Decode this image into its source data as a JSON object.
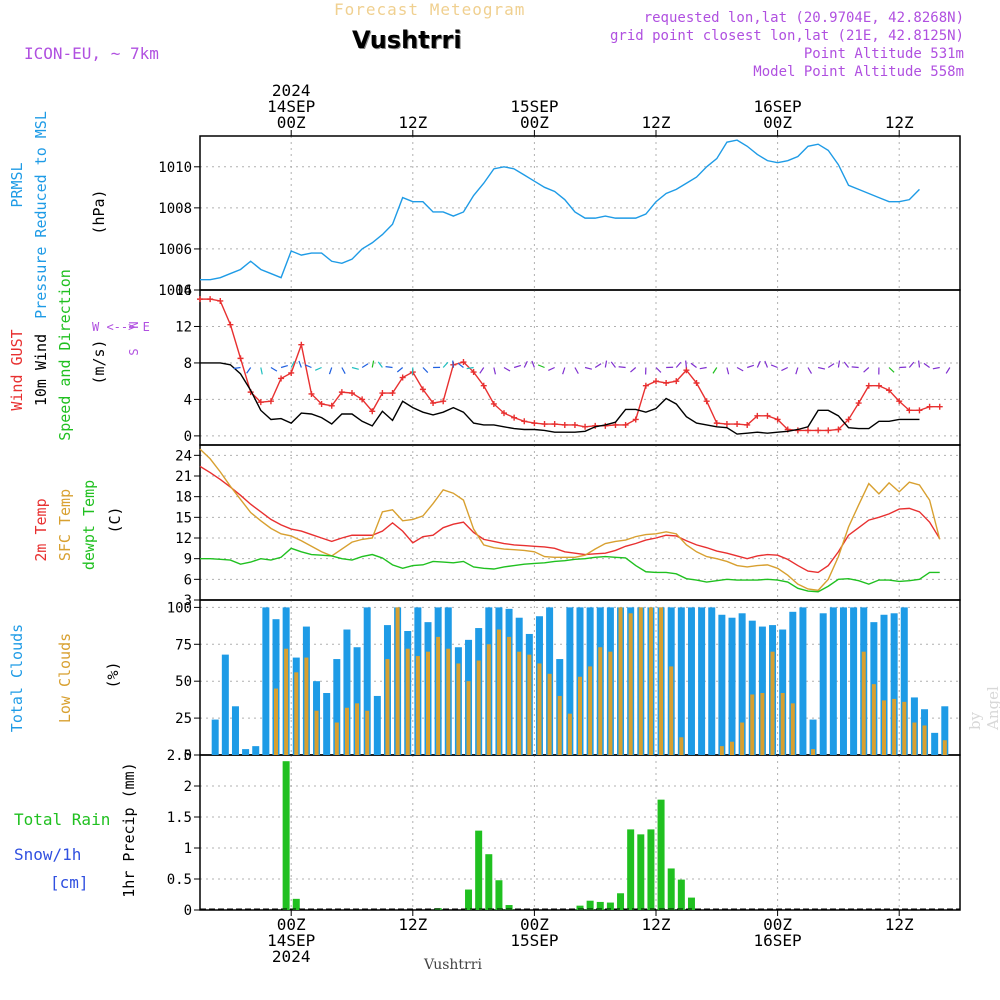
{
  "header": {
    "title": "Forecast Meteogram",
    "station": "Vushtrri",
    "model": "ICON-EU, ~ 7km",
    "requested": "requested lon,lat (20.9704E, 42.8268N)",
    "gridpoint": "grid point closest lon,lat (21E, 42.8125N)",
    "point_alt": "Point Altitude 531m",
    "model_alt": "Model Point Altitude 558m",
    "credit": "by Angel",
    "footer": "Vushtrri"
  },
  "colors": {
    "pressure": "#1e9be6",
    "gust": "#e83030",
    "wind": "#000000",
    "dir": "#20c020",
    "t2m": "#e83030",
    "tsfc": "#d8a030",
    "dew": "#20c020",
    "totcloud": "#1e9be6",
    "lowcloud": "#d8a030",
    "rain": "#20c020",
    "snow": "#3050e0",
    "meta": "#b050e0"
  },
  "chart_data": {
    "type": "meteogram",
    "time_axis": {
      "start_hour": -9,
      "end_hour": 66,
      "top_labels": [
        {
          "hour": 0,
          "lines": [
            "2024",
            "14SEP",
            "00Z"
          ]
        },
        {
          "hour": 12,
          "lines": [
            "12Z"
          ]
        },
        {
          "hour": 24,
          "lines": [
            "15SEP",
            "00Z"
          ]
        },
        {
          "hour": 36,
          "lines": [
            "12Z"
          ]
        },
        {
          "hour": 48,
          "lines": [
            "16SEP",
            "00Z"
          ]
        },
        {
          "hour": 60,
          "lines": [
            "12Z"
          ]
        }
      ],
      "bottom_labels": [
        {
          "hour": 0,
          "lines": [
            "00Z",
            "14SEP",
            "2024"
          ]
        },
        {
          "hour": 12,
          "lines": [
            "12Z"
          ]
        },
        {
          "hour": 24,
          "lines": [
            "00Z",
            "15SEP"
          ]
        },
        {
          "hour": 36,
          "lines": [
            "12Z"
          ]
        },
        {
          "hour": 48,
          "lines": [
            "00Z",
            "16SEP"
          ]
        },
        {
          "hour": 60,
          "lines": [
            "12Z"
          ]
        }
      ]
    },
    "panels": {
      "pressure": {
        "ylabel_lines": [
          "PRMSL",
          "Pressure Reduced to MSL"
        ],
        "unit": "(hPa)",
        "ylim": [
          1004,
          1011.5
        ],
        "ticks": [
          1004,
          1006,
          1008,
          1010
        ],
        "series": [
          {
            "name": "PRMSL",
            "values": [
              1004.5,
              1004.5,
              1004.6,
              1004.8,
              1005.0,
              1005.4,
              1005.0,
              1004.8,
              1004.6,
              1005.9,
              1005.7,
              1005.8,
              1005.8,
              1005.4,
              1005.3,
              1005.5,
              1006.0,
              1006.3,
              1006.7,
              1007.2,
              1008.5,
              1008.3,
              1008.3,
              1007.8,
              1007.8,
              1007.6,
              1007.8,
              1008.6,
              1009.2,
              1009.9,
              1010.0,
              1009.9,
              1009.6,
              1009.3,
              1009.0,
              1008.8,
              1008.4,
              1007.8,
              1007.5,
              1007.5,
              1007.6,
              1007.5,
              1007.5,
              1007.5,
              1007.7,
              1008.3,
              1008.7,
              1008.9,
              1009.2,
              1009.5,
              1010.0,
              1010.4,
              1011.2,
              1011.3,
              1011.0,
              1010.6,
              1010.3,
              1010.2,
              1010.3,
              1010.5,
              1011.0,
              1011.1,
              1010.8,
              1010.1,
              1009.1,
              1008.9,
              1008.7,
              1008.5,
              1008.3,
              1008.3,
              1008.4,
              1008.9
            ]
          }
        ]
      },
      "wind": {
        "ylabel_lines": [
          "Wind GUST",
          "10m Wind",
          "Speed and Direction"
        ],
        "unit": "(m/s)",
        "compass": [
          "N",
          "W <--> E",
          "S"
        ],
        "ylim": [
          -1,
          16
        ],
        "ticks": [
          0,
          4,
          8,
          12,
          16
        ],
        "series": [
          {
            "name": "Wind GUST",
            "values": [
              15.0,
              15.0,
              14.8,
              12.2,
              8.5,
              4.8,
              3.7,
              3.8,
              6.3,
              6.9,
              10.0,
              4.6,
              3.5,
              3.3,
              4.8,
              4.7,
              4.0,
              2.7,
              4.7,
              4.7,
              6.4,
              7.0,
              5.1,
              3.6,
              3.8,
              7.8,
              8.1,
              7.0,
              5.5,
              3.5,
              2.5,
              2.0,
              1.6,
              1.4,
              1.3,
              1.3,
              1.2,
              1.2,
              1.0,
              1.1,
              1.1,
              1.2,
              1.2,
              1.8,
              5.5,
              6.0,
              5.8,
              6.0,
              7.2,
              5.8,
              3.8,
              1.4,
              1.3,
              1.3,
              1.2,
              2.2,
              2.2,
              1.8,
              0.7,
              0.6,
              0.6,
              0.6,
              0.6,
              0.7,
              1.8,
              3.6,
              5.5,
              5.5,
              5.0,
              3.8,
              2.8,
              2.8,
              3.2,
              3.2
            ]
          },
          {
            "name": "10m Wind",
            "values": [
              8.0,
              8.0,
              8.0,
              7.8,
              6.8,
              5.0,
              2.8,
              1.8,
              1.9,
              1.4,
              2.5,
              2.4,
              2.0,
              1.3,
              2.4,
              2.4,
              1.6,
              1.1,
              2.7,
              1.7,
              3.8,
              3.1,
              2.6,
              2.3,
              2.6,
              3.1,
              2.6,
              1.4,
              1.2,
              1.2,
              1.0,
              0.8,
              0.7,
              0.7,
              0.6,
              0.4,
              0.4,
              0.4,
              0.5,
              1.0,
              1.2,
              1.5,
              2.9,
              2.9,
              2.6,
              3.0,
              4.1,
              3.5,
              2.1,
              1.4,
              1.2,
              1.0,
              0.9,
              0.2,
              0.3,
              0.4,
              0.3,
              0.4,
              0.5,
              0.7,
              1.0,
              2.8,
              2.8,
              2.2,
              0.9,
              0.8,
              0.8,
              1.6,
              1.6,
              1.8,
              1.8,
              1.8
            ]
          }
        ]
      },
      "temp": {
        "ylabel_lines": [
          "2m Temp",
          "SFC Temp",
          "dewpt Temp"
        ],
        "unit": "(C)",
        "ylim": [
          3,
          25.5
        ],
        "ticks": [
          3,
          6,
          9,
          12,
          15,
          18,
          21,
          24
        ],
        "series": [
          {
            "name": "2m Temp",
            "values": [
              22.4,
              21.5,
              20.5,
              19.4,
              18.2,
              16.9,
              15.8,
              14.7,
              13.9,
              13.3,
              13.0,
              12.5,
              12.0,
              11.5,
              12.0,
              12.4,
              12.4,
              12.4,
              13.0,
              14.2,
              13.0,
              11.3,
              12.2,
              12.4,
              13.5,
              14.0,
              14.3,
              12.8,
              11.8,
              11.5,
              11.2,
              11.0,
              10.9,
              10.8,
              10.7,
              10.5,
              10.0,
              9.8,
              9.6,
              9.7,
              9.8,
              10.2,
              10.8,
              11.2,
              11.7,
              12.0,
              12.4,
              12.3,
              11.6,
              11.0,
              10.6,
              10.1,
              9.8,
              9.4,
              9.0,
              9.4,
              9.6,
              9.5,
              8.9,
              8.0,
              7.2,
              7.0,
              8.0,
              10.0,
              12.4,
              13.5,
              14.6,
              15.0,
              15.5,
              16.2,
              16.3,
              15.8,
              14.3,
              11.9
            ]
          },
          {
            "name": "SFC Temp",
            "values": [
              24.9,
              23.5,
              21.6,
              19.5,
              17.6,
              15.7,
              14.5,
              13.4,
              12.6,
              12.3,
              11.6,
              10.8,
              10.0,
              9.4,
              10.4,
              11.4,
              11.8,
              12.0,
              15.8,
              16.1,
              14.5,
              14.7,
              15.2,
              17.0,
              19.0,
              18.5,
              17.5,
              13.3,
              11.0,
              10.6,
              10.4,
              10.3,
              10.2,
              10.0,
              9.3,
              9.2,
              9.2,
              9.2,
              9.5,
              10.4,
              11.2,
              11.5,
              11.7,
              12.2,
              12.5,
              12.6,
              12.9,
              12.6,
              11.0,
              10.0,
              9.3,
              9.0,
              8.6,
              8.0,
              7.8,
              8.0,
              8.1,
              7.6,
              6.6,
              5.3,
              4.6,
              4.4,
              6.0,
              9.3,
              13.6,
              16.8,
              19.9,
              18.4,
              20.0,
              18.7,
              20.1,
              19.7,
              17.5,
              11.8
            ]
          },
          {
            "name": "dewpt Temp",
            "values": [
              9.0,
              9.0,
              8.9,
              8.8,
              8.2,
              8.5,
              9.0,
              8.8,
              9.2,
              10.5,
              10.0,
              9.6,
              9.5,
              9.4,
              9.0,
              8.8,
              9.3,
              9.6,
              9.1,
              8.1,
              7.6,
              8.0,
              8.1,
              8.6,
              8.5,
              8.4,
              8.6,
              7.8,
              7.6,
              7.5,
              7.8,
              8.0,
              8.2,
              8.3,
              8.4,
              8.6,
              8.7,
              8.9,
              9.0,
              9.2,
              9.3,
              9.2,
              9.1,
              8.0,
              7.1,
              7.0,
              7.0,
              6.8,
              6.1,
              5.9,
              5.6,
              5.8,
              6.0,
              5.9,
              5.9,
              5.9,
              6.0,
              5.9,
              5.6,
              4.7,
              4.3,
              4.2,
              5.0,
              6.0,
              6.1,
              5.8,
              5.3,
              5.9,
              5.9,
              5.7,
              5.8,
              6.0,
              7.0,
              7.0
            ]
          }
        ]
      },
      "cloud": {
        "ylabel_lines": [
          "Total Clouds",
          "Low Clouds"
        ],
        "unit": "(%)",
        "ylim": [
          0,
          105
        ],
        "ticks": [
          0,
          25,
          50,
          75,
          100
        ],
        "series": [
          {
            "name": "Total Clouds",
            "values": [
              0,
              24,
              68,
              33,
              4,
              6,
              100,
              92,
              100,
              66,
              87,
              50,
              42,
              65,
              85,
              73,
              100,
              40,
              88,
              100,
              84,
              100,
              90,
              100,
              100,
              73,
              78,
              86,
              100,
              100,
              99,
              93,
              82,
              94,
              100,
              65,
              100,
              100,
              100,
              100,
              100,
              100,
              100,
              100,
              100,
              100,
              100,
              100,
              100,
              100,
              100,
              95,
              93,
              96,
              91,
              87,
              88,
              85,
              97,
              100,
              24,
              96,
              100,
              100,
              100,
              100,
              90,
              95,
              96,
              100,
              39,
              31,
              15,
              33
            ]
          },
          {
            "name": "Low Clouds",
            "values": [
              0,
              0,
              0,
              0,
              0,
              0,
              0,
              45,
              72,
              56,
              66,
              30,
              0,
              22,
              32,
              35,
              30,
              0,
              65,
              100,
              72,
              67,
              70,
              80,
              72,
              62,
              50,
              64,
              75,
              85,
              80,
              70,
              68,
              62,
              55,
              40,
              28,
              53,
              60,
              73,
              70,
              100,
              96,
              100,
              100,
              100,
              60,
              12,
              0,
              0,
              0,
              6,
              9,
              22,
              41,
              42,
              70,
              42,
              35,
              0,
              4,
              0,
              0,
              0,
              0,
              70,
              48,
              37,
              38,
              36,
              22,
              20,
              0,
              10
            ]
          }
        ]
      },
      "precip": {
        "ylabel_lines": [
          "1hr Precip (mm)"
        ],
        "unit": "",
        "legend_lines": [
          "Total  Rain",
          "Snow/1h",
          "[cm]"
        ],
        "ylim": [
          0,
          2.5
        ],
        "ticks": [
          0,
          0.5,
          1,
          1.5,
          2,
          2.5
        ],
        "tick_labels": [
          "0",
          "0.5",
          "1",
          "1.5",
          "2",
          "2.5"
        ],
        "series": [
          {
            "name": "Total Rain",
            "values": [
              0,
              0,
              0,
              0,
              0,
              0,
              0,
              0,
              2.4,
              0.18,
              0,
              0,
              0,
              0,
              0,
              0,
              0,
              0,
              0,
              0,
              0,
              0,
              0,
              0.03,
              0,
              0,
              0.33,
              1.28,
              0.9,
              0.48,
              0.08,
              0,
              0,
              0,
              0,
              0,
              0,
              0.07,
              0.15,
              0.13,
              0.12,
              0.27,
              1.3,
              1.22,
              1.3,
              1.78,
              0.67,
              0.49,
              0.2,
              0,
              0,
              0,
              0,
              0,
              0,
              0,
              0,
              0,
              0,
              0,
              0,
              0,
              0,
              0,
              0,
              0,
              0,
              0,
              0,
              0,
              0,
              0,
              0,
              0
            ]
          }
        ]
      }
    }
  }
}
